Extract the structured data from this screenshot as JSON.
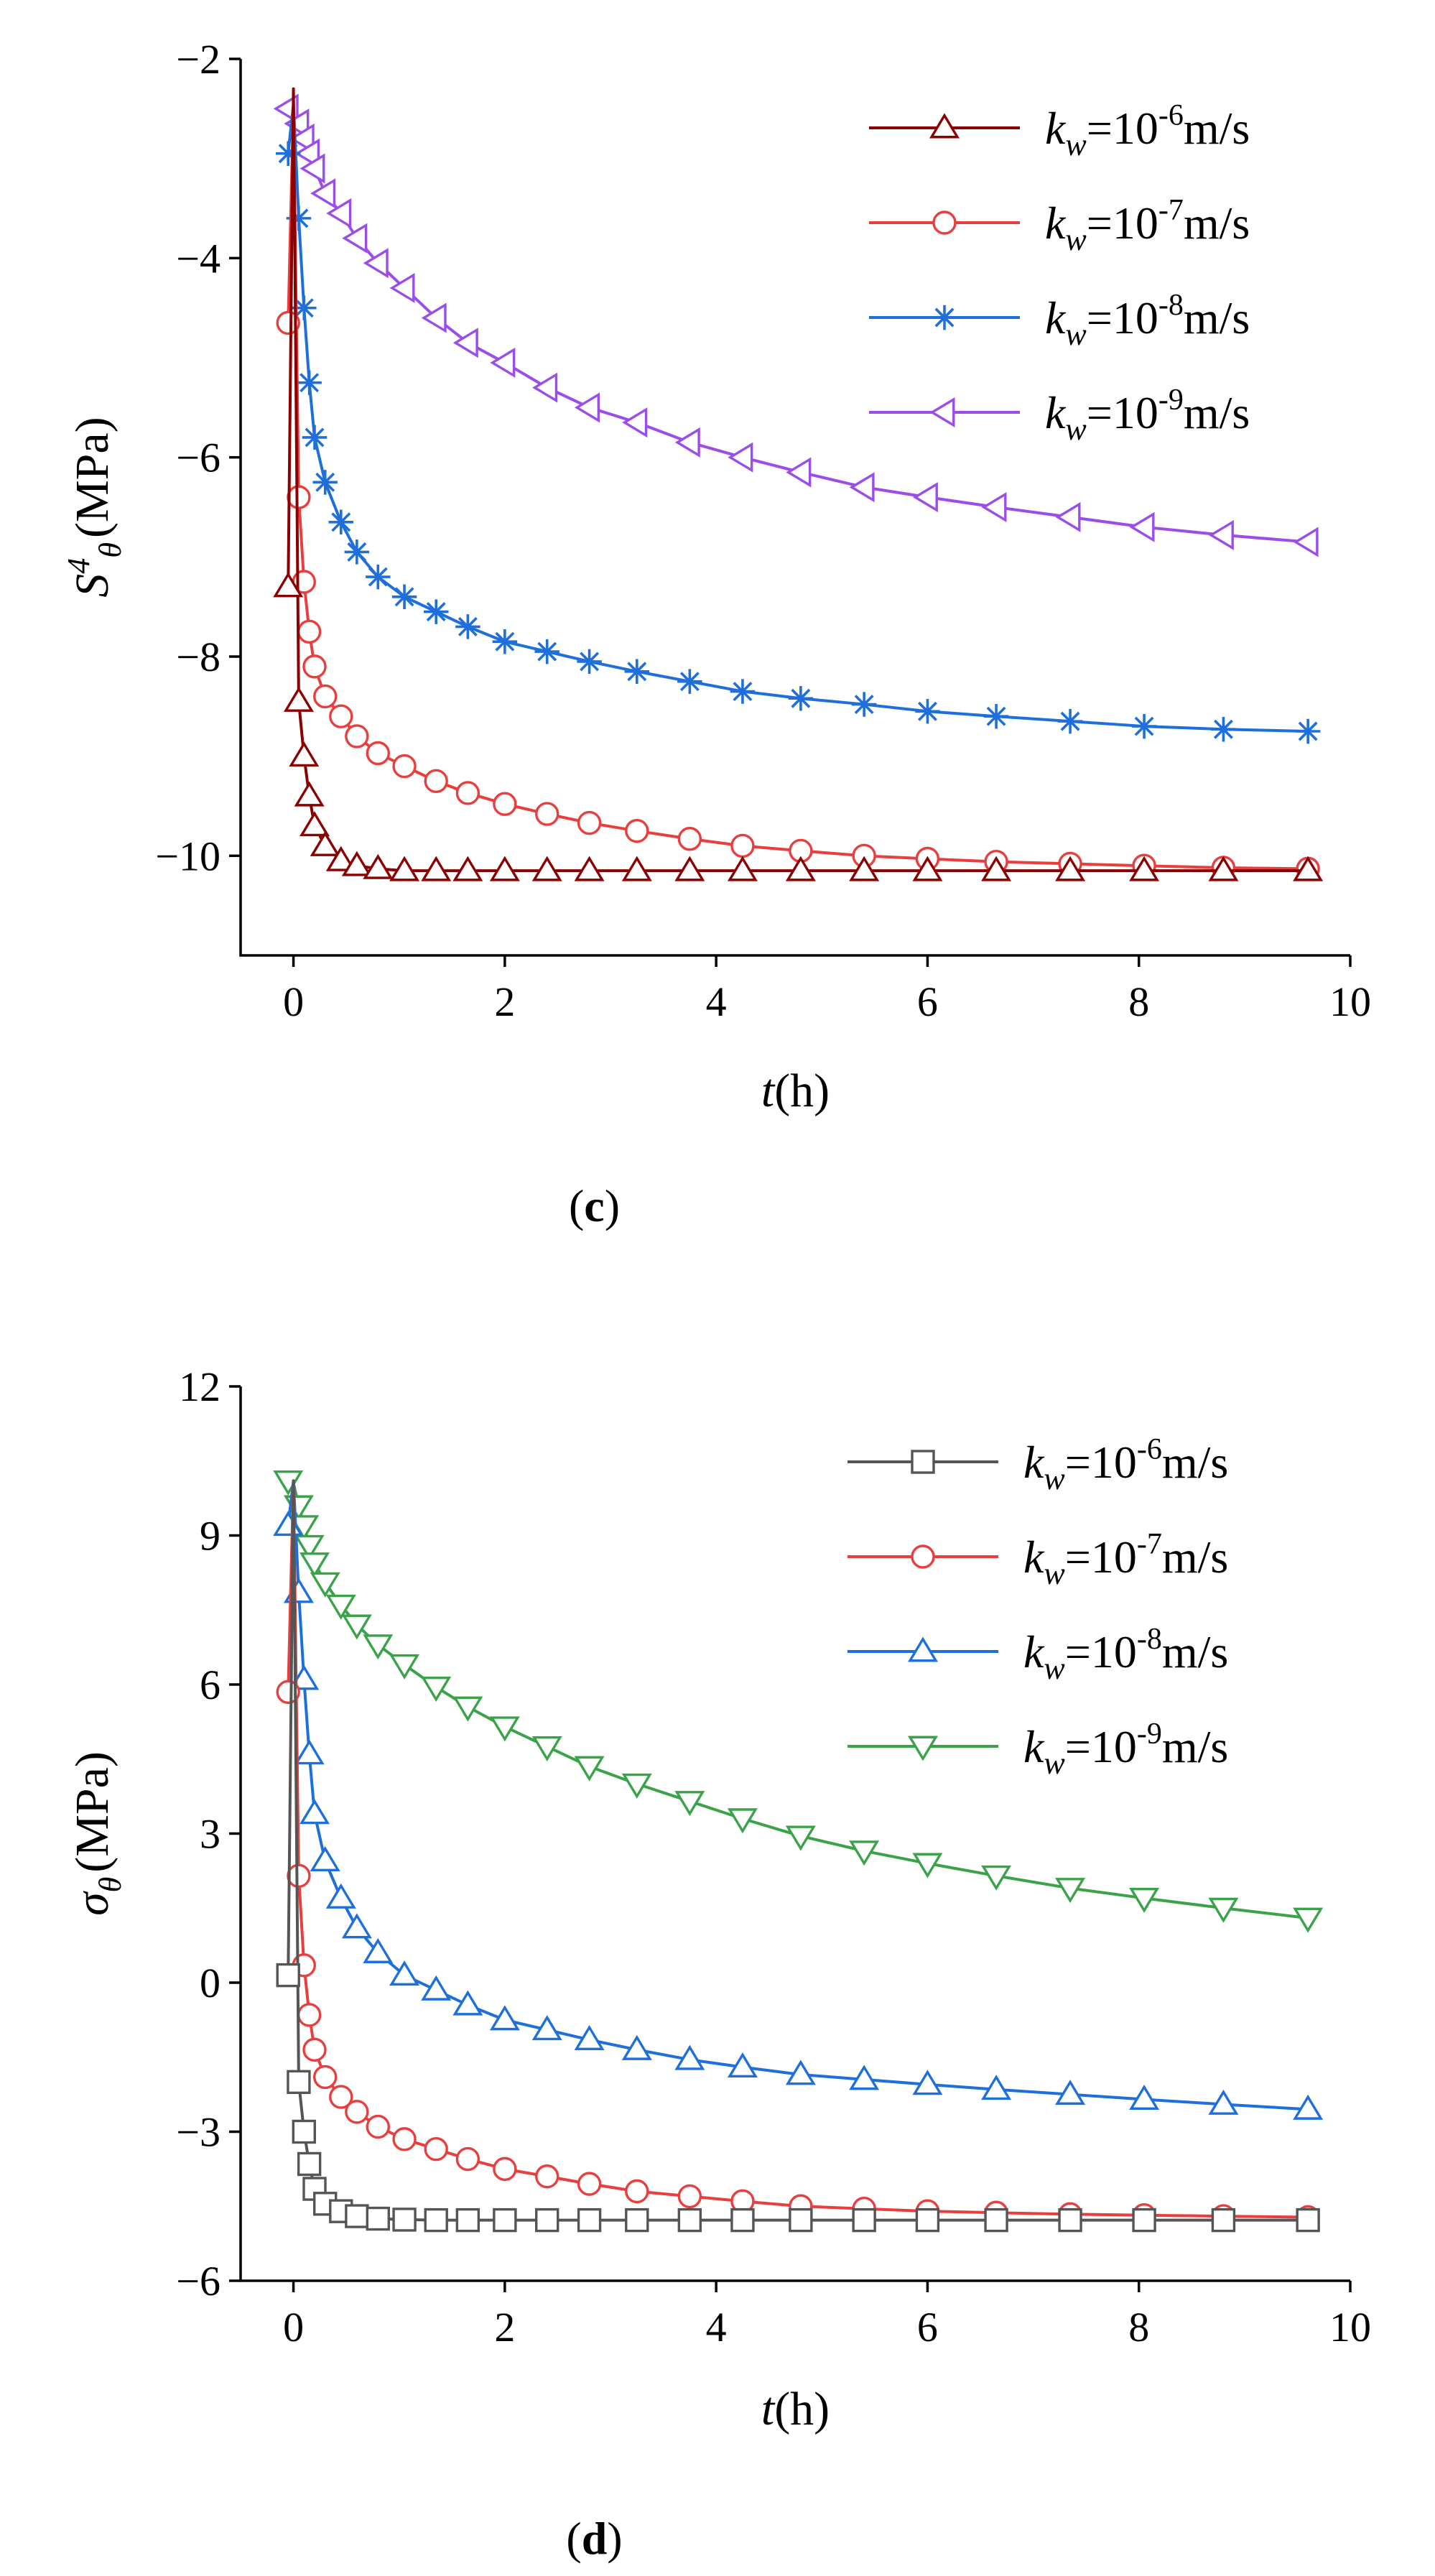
{
  "chart_data": [
    {
      "type": "line",
      "panel_label": "c",
      "ylabel_main": "S",
      "ylabel_sup": "4",
      "ylabel_sub": "θ",
      "ylabel_unit": "(MPa)",
      "xlabel_main": "t",
      "xlabel_unit": "(h)",
      "xlim": [
        -0.5,
        10
      ],
      "ylim": [
        -11,
        -2
      ],
      "xticks": [
        0,
        2,
        4,
        6,
        8,
        10
      ],
      "yticks": [
        -10,
        -8,
        -6,
        -4,
        -2
      ],
      "xtick_labels": [
        "0",
        "2",
        "4",
        "6",
        "8",
        "10"
      ],
      "ytick_labels": [
        "−10",
        "−8",
        "−6",
        "−4",
        "−2"
      ],
      "x": [
        -0.05,
        0.0,
        0.05,
        0.1,
        0.15,
        0.2,
        0.3,
        0.45,
        0.6,
        0.8,
        1.05,
        1.35,
        1.65,
        2.0,
        2.4,
        2.8,
        3.25,
        3.75,
        4.25,
        4.8,
        5.4,
        6.0,
        6.65,
        7.35,
        8.05,
        8.8,
        9.6
      ],
      "series": [
        {
          "name": "k_w=10^-6 m/s",
          "legend_k": "k",
          "legend_sub": "w",
          "legend_eq": "=10",
          "legend_exp": "-6",
          "legend_unit": "m/s",
          "color": "#8b0000",
          "marker": "triangle-up",
          "values": [
            -7.3,
            -2.3,
            -8.45,
            -9.0,
            -9.4,
            -9.7,
            -9.9,
            -10.05,
            -10.1,
            -10.13,
            -10.15,
            -10.15,
            -10.15,
            -10.15,
            -10.15,
            -10.15,
            -10.15,
            -10.15,
            -10.15,
            -10.15,
            -10.15,
            -10.15,
            -10.15,
            -10.15,
            -10.15,
            -10.15,
            -10.15
          ]
        },
        {
          "name": "k_w=10^-7 m/s",
          "legend_k": "k",
          "legend_sub": "w",
          "legend_eq": "=10",
          "legend_exp": "-7",
          "legend_unit": "m/s",
          "color": "#e83e3e",
          "marker": "circle",
          "values": [
            -4.65,
            -2.45,
            -6.4,
            -7.25,
            -7.75,
            -8.1,
            -8.4,
            -8.6,
            -8.8,
            -8.97,
            -9.1,
            -9.25,
            -9.37,
            -9.48,
            -9.58,
            -9.67,
            -9.75,
            -9.83,
            -9.9,
            -9.95,
            -10.0,
            -10.03,
            -10.06,
            -10.08,
            -10.1,
            -10.12,
            -10.13
          ]
        },
        {
          "name": "k_w=10^-8 m/s",
          "legend_k": "k",
          "legend_sub": "w",
          "legend_eq": "=10",
          "legend_exp": "-8",
          "legend_unit": "m/s",
          "color": "#1e6fdc",
          "marker": "asterisk",
          "values": [
            -2.95,
            -2.45,
            -3.6,
            -4.5,
            -5.25,
            -5.8,
            -6.25,
            -6.65,
            -6.95,
            -7.2,
            -7.4,
            -7.55,
            -7.7,
            -7.85,
            -7.95,
            -8.05,
            -8.15,
            -8.25,
            -8.35,
            -8.42,
            -8.48,
            -8.55,
            -8.6,
            -8.65,
            -8.7,
            -8.73,
            -8.75
          ]
        },
        {
          "name": "k_w=10^-9 m/s",
          "legend_k": "k",
          "legend_sub": "w",
          "legend_eq": "=10",
          "legend_exp": "-9",
          "legend_unit": "m/s",
          "color": "#9b4dea",
          "marker": "triangle-left",
          "values": [
            -2.5,
            -2.45,
            -2.65,
            -2.8,
            -2.95,
            -3.1,
            -3.35,
            -3.55,
            -3.8,
            -4.05,
            -4.3,
            -4.6,
            -4.85,
            -5.05,
            -5.3,
            -5.5,
            -5.65,
            -5.85,
            -6.0,
            -6.15,
            -6.3,
            -6.4,
            -6.5,
            -6.6,
            -6.7,
            -6.78,
            -6.85
          ]
        }
      ]
    },
    {
      "type": "line",
      "panel_label": "d",
      "ylabel_main": "σ",
      "ylabel_sup": "",
      "ylabel_sub": "θ",
      "ylabel_unit": "(MPa)",
      "xlabel_main": "t",
      "xlabel_unit": "(h)",
      "xlim": [
        -0.5,
        10
      ],
      "ylim": [
        -6,
        12
      ],
      "xticks": [
        0,
        2,
        4,
        6,
        8,
        10
      ],
      "yticks": [
        -6,
        -3,
        0,
        3,
        6,
        9,
        12
      ],
      "xtick_labels": [
        "0",
        "2",
        "4",
        "6",
        "8",
        "10"
      ],
      "ytick_labels": [
        "−6",
        "−3",
        "0",
        "3",
        "6",
        "9",
        "12"
      ],
      "x": [
        -0.05,
        0.0,
        0.05,
        0.1,
        0.15,
        0.2,
        0.3,
        0.45,
        0.6,
        0.8,
        1.05,
        1.35,
        1.65,
        2.0,
        2.4,
        2.8,
        3.25,
        3.75,
        4.25,
        4.8,
        5.4,
        6.0,
        6.65,
        7.35,
        8.05,
        8.8,
        9.6
      ],
      "series": [
        {
          "name": "k_w=10^-6 m/s",
          "legend_k": "k",
          "legend_sub": "w",
          "legend_eq": "=10",
          "legend_exp": "-6",
          "legend_unit": "m/s",
          "color": "#555555",
          "marker": "square",
          "values": [
            0.15,
            10.1,
            -2.0,
            -3.0,
            -3.65,
            -4.15,
            -4.45,
            -4.6,
            -4.7,
            -4.75,
            -4.77,
            -4.78,
            -4.78,
            -4.78,
            -4.78,
            -4.78,
            -4.78,
            -4.78,
            -4.78,
            -4.78,
            -4.78,
            -4.78,
            -4.78,
            -4.78,
            -4.78,
            -4.78,
            -4.78
          ]
        },
        {
          "name": "k_w=10^-7 m/s",
          "legend_k": "k",
          "legend_sub": "w",
          "legend_eq": "=10",
          "legend_exp": "-7",
          "legend_unit": "m/s",
          "color": "#e83e3e",
          "marker": "circle",
          "values": [
            5.85,
            10.1,
            2.15,
            0.35,
            -0.65,
            -1.35,
            -1.9,
            -2.3,
            -2.6,
            -2.9,
            -3.15,
            -3.35,
            -3.55,
            -3.75,
            -3.9,
            -4.05,
            -4.2,
            -4.3,
            -4.4,
            -4.5,
            -4.55,
            -4.6,
            -4.63,
            -4.66,
            -4.68,
            -4.7,
            -4.72
          ]
        },
        {
          "name": "k_w=10^-8 m/s",
          "legend_k": "k",
          "legend_sub": "w",
          "legend_eq": "=10",
          "legend_exp": "-8",
          "legend_unit": "m/s",
          "color": "#1e6fdc",
          "marker": "triangle-up",
          "values": [
            9.2,
            10.1,
            7.85,
            6.1,
            4.6,
            3.4,
            2.45,
            1.7,
            1.1,
            0.6,
            0.15,
            -0.15,
            -0.45,
            -0.75,
            -0.95,
            -1.15,
            -1.35,
            -1.55,
            -1.7,
            -1.85,
            -1.95,
            -2.05,
            -2.15,
            -2.25,
            -2.35,
            -2.45,
            -2.55
          ]
        },
        {
          "name": "k_w=10^-9 m/s",
          "legend_k": "k",
          "legend_sub": "w",
          "legend_eq": "=10",
          "legend_exp": "-9",
          "legend_unit": "m/s",
          "color": "#3aa34a",
          "marker": "triangle-down",
          "values": [
            10.1,
            10.05,
            9.6,
            9.2,
            8.8,
            8.45,
            8.05,
            7.6,
            7.2,
            6.8,
            6.4,
            5.95,
            5.55,
            5.15,
            4.75,
            4.35,
            4.0,
            3.65,
            3.3,
            2.95,
            2.65,
            2.4,
            2.15,
            1.9,
            1.7,
            1.5,
            1.3
          ]
        }
      ]
    }
  ]
}
